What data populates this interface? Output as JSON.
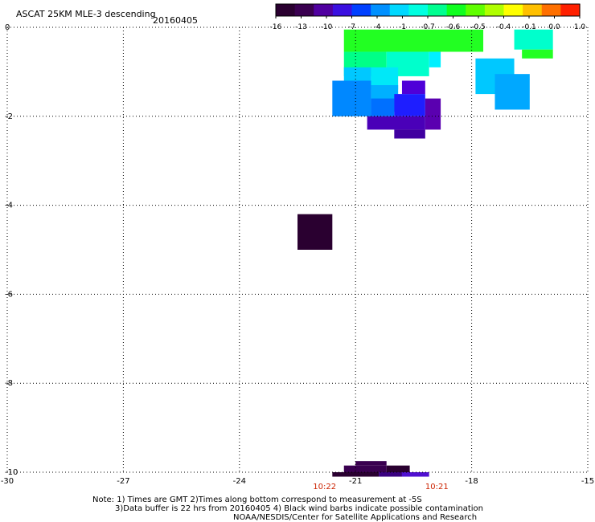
{
  "header": {
    "title": "ASCAT 25KM MLE-3 descending",
    "date": "20160405"
  },
  "colorbar": {
    "ticks": [
      "-16",
      "-13",
      "-10",
      "-7",
      "-4",
      "-1",
      "-0.7",
      "-0.6",
      "-0.5",
      "-0.4",
      "-0.1",
      "0.0",
      "1.0"
    ],
    "colors": [
      "#2a0030",
      "#3a0050",
      "#5000a0",
      "#3a10e0",
      "#0040ff",
      "#0090ff",
      "#00d8ff",
      "#00ffe0",
      "#00ff90",
      "#10ff20",
      "#60ff00",
      "#b0ff00",
      "#ffff00",
      "#ffc000",
      "#ff7000",
      "#ff2000"
    ]
  },
  "axes": {
    "x_ticks": [
      -30,
      -27,
      -24,
      -21,
      -18,
      -15
    ],
    "y_ticks": [
      0,
      -2,
      -4,
      -6,
      -8,
      -10
    ],
    "x_range": [
      -30,
      -15
    ],
    "y_range": [
      -10,
      0
    ]
  },
  "times": [
    {
      "label": "10:22",
      "lon": -21.8
    },
    {
      "label": "10:21",
      "lon": -18.9
    }
  ],
  "colors": {
    "time_label": "#cc2200",
    "grid": "#000000"
  },
  "footer": {
    "line1": "Note: 1) Times are GMT 2)Times along bottom correspond to measurement at -5S",
    "line2": "3)Data buffer is 22 hrs from 20160405 4) Black wind barbs indicate possible contamination",
    "line3": "NOAA/NESDIS/Center for Satellite Applications and Research"
  },
  "cells": [
    {
      "lon": -21.3,
      "lat": -0.05,
      "lon2": -17.7,
      "lat2": -0.55,
      "color": "#22ff22"
    },
    {
      "lon": -21.3,
      "lat": -0.55,
      "lon2": -20.2,
      "lat2": -1.1,
      "color": "#00ff88"
    },
    {
      "lon": -20.2,
      "lat": -0.55,
      "lon2": -19.1,
      "lat2": -1.1,
      "color": "#00ffcc"
    },
    {
      "lon": -19.1,
      "lat": -0.55,
      "lon2": -18.8,
      "lat2": -0.9,
      "color": "#00f0ff"
    },
    {
      "lon": -21.3,
      "lat": -0.9,
      "lon2": -20.6,
      "lat2": -1.4,
      "color": "#00c8ff"
    },
    {
      "lon": -20.6,
      "lat": -0.9,
      "lon2": -19.9,
      "lat2": -1.4,
      "color": "#00e8f8"
    },
    {
      "lon": -21.6,
      "lat": -1.2,
      "lon2": -20.6,
      "lat2": -2.0,
      "color": "#0088ff"
    },
    {
      "lon": -20.6,
      "lat": -1.3,
      "lon2": -19.9,
      "lat2": -1.9,
      "color": "#00b0ff"
    },
    {
      "lon": -20.6,
      "lat": -1.6,
      "lon2": -20.0,
      "lat2": -2.0,
      "color": "#0070ff"
    },
    {
      "lon": -19.8,
      "lat": -1.2,
      "lon2": -19.2,
      "lat2": -1.5,
      "color": "#4f00d8"
    },
    {
      "lon": -20.0,
      "lat": -1.5,
      "lon2": -19.2,
      "lat2": -2.0,
      "color": "#1e1eff"
    },
    {
      "lon": -19.2,
      "lat": -1.6,
      "lon2": -18.8,
      "lat2": -2.3,
      "color": "#5a00b0"
    },
    {
      "lon": -20.7,
      "lat": -2.0,
      "lon2": -19.2,
      "lat2": -2.3,
      "color": "#4a00b8"
    },
    {
      "lon": -20.0,
      "lat": -2.3,
      "lon2": -19.2,
      "lat2": -2.5,
      "color": "#4000a0"
    },
    {
      "lon": -17.9,
      "lat": -0.7,
      "lon2": -16.9,
      "lat2": -1.5,
      "color": "#00c8ff"
    },
    {
      "lon": -17.4,
      "lat": -1.05,
      "lon2": -16.5,
      "lat2": -1.85,
      "color": "#00a8ff"
    },
    {
      "lon": -16.9,
      "lat": -0.05,
      "lon2": -15.9,
      "lat2": -0.5,
      "color": "#00ffcc"
    },
    {
      "lon": -16.7,
      "lat": -0.5,
      "lon2": -15.9,
      "lat2": -0.7,
      "color": "#22ff22"
    },
    {
      "lon": -22.5,
      "lat": -4.2,
      "lon2": -21.6,
      "lat2": -5.0,
      "color": "#2a0030"
    },
    {
      "lon": -21.0,
      "lat": -9.75,
      "lon2": -20.2,
      "lat2": -9.85,
      "color": "#3a0050"
    },
    {
      "lon": -21.3,
      "lat": -9.85,
      "lon2": -20.2,
      "lat2": -10.0,
      "color": "#3a0050"
    },
    {
      "lon": -20.2,
      "lat": -9.85,
      "lon2": -19.6,
      "lat2": -10.0,
      "color": "#2a0030"
    },
    {
      "lon": -21.6,
      "lat": -10.0,
      "lon2": -20.4,
      "lat2": -10.1,
      "color": "#2a0030"
    },
    {
      "lon": -20.4,
      "lat": -10.0,
      "lon2": -19.8,
      "lat2": -10.1,
      "color": "#3a0080"
    },
    {
      "lon": -19.8,
      "lat": -10.0,
      "lon2": -19.1,
      "lat2": -10.1,
      "color": "#5010d0"
    }
  ]
}
